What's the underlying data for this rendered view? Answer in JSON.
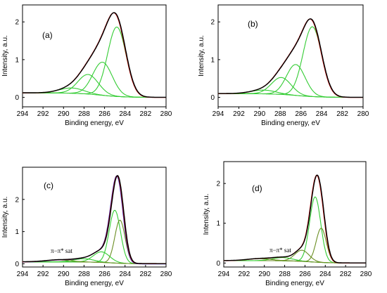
{
  "chart_data": [
    {
      "type": "line",
      "panel_label": "(a)",
      "xlabel": "Binding energy, eV",
      "ylabel": "Intensity, a.u.",
      "xlim": [
        294,
        280
      ],
      "ylim": [
        -0.25,
        2.45
      ],
      "x_ticks": [
        294,
        292,
        290,
        288,
        286,
        284,
        282,
        280
      ],
      "y_ticks": [
        0,
        1,
        2
      ],
      "annotation": "",
      "components": [
        {
          "center": 284.8,
          "amp": 1.84,
          "sigma": 0.9,
          "color": "#33cc33"
        },
        {
          "center": 286.2,
          "amp": 0.88,
          "sigma": 0.95,
          "color": "#33cc33"
        },
        {
          "center": 287.6,
          "amp": 0.52,
          "sigma": 1.0,
          "color": "#33cc33"
        },
        {
          "center": 289.2,
          "amp": 0.14,
          "sigma": 1.2,
          "color": "#33cc33"
        }
      ],
      "background": {
        "low": 0.0,
        "high": 0.12,
        "step_center": 286.5,
        "step_width": 1.2
      },
      "envelope_colors": [
        "#cc0000",
        "#000000"
      ]
    },
    {
      "type": "line",
      "panel_label": "(b)",
      "xlabel": "Binding energy, eV",
      "ylabel": "Intensity, a.u.",
      "xlim": [
        294,
        280
      ],
      "ylim": [
        -0.25,
        2.45
      ],
      "x_ticks": [
        294,
        292,
        290,
        288,
        286,
        284,
        282,
        280
      ],
      "y_ticks": [
        0,
        1,
        2
      ],
      "annotation": "",
      "components": [
        {
          "center": 284.9,
          "amp": 1.85,
          "sigma": 0.9,
          "color": "#33cc33"
        },
        {
          "center": 286.5,
          "amp": 0.82,
          "sigma": 0.9,
          "color": "#33cc33"
        },
        {
          "center": 287.9,
          "amp": 0.45,
          "sigma": 0.95,
          "color": "#33cc33"
        },
        {
          "center": 289.6,
          "amp": 0.1,
          "sigma": 1.2,
          "color": "#33cc33"
        }
      ],
      "background": {
        "low": 0.0,
        "high": 0.1,
        "step_center": 286.5,
        "step_width": 1.2
      },
      "envelope_colors": [
        "#cc0000",
        "#000000"
      ]
    },
    {
      "type": "line",
      "panel_label": "(c)",
      "xlabel": "Binding energy, eV",
      "ylabel": "Intensity, a.u.",
      "xlim": [
        294,
        280
      ],
      "ylim": [
        -0.1,
        3.0
      ],
      "x_ticks": [
        294,
        292,
        290,
        288,
        286,
        284,
        282,
        280
      ],
      "y_ticks": [
        0,
        1,
        2
      ],
      "annotation": "π−π* sat",
      "components": [
        {
          "center": 285.0,
          "amp": 1.64,
          "sigma": 0.55,
          "color": "#33cc33"
        },
        {
          "center": 284.5,
          "amp": 1.34,
          "sigma": 0.5,
          "color": "#6b8e23"
        },
        {
          "center": 286.3,
          "amp": 0.33,
          "sigma": 0.8,
          "color": "#33cc33"
        },
        {
          "center": 288.0,
          "amp": 0.1,
          "sigma": 1.0,
          "color": "#33cc33"
        },
        {
          "center": 290.5,
          "amp": 0.06,
          "sigma": 1.2,
          "color": "#6b8e23"
        }
      ],
      "background": {
        "low": 0.0,
        "high": 0.06,
        "step_center": 285.5,
        "step_width": 1.0
      },
      "envelope_colors": [
        "#3333cc",
        "#cc0000",
        "#000000"
      ]
    },
    {
      "type": "line",
      "panel_label": "(d)",
      "xlabel": "Binding energy, eV",
      "ylabel": "Intensity, a.u.",
      "xlim": [
        294,
        280
      ],
      "ylim": [
        -0.1,
        2.55
      ],
      "x_ticks": [
        294,
        292,
        290,
        288,
        286,
        284,
        282,
        280
      ],
      "y_ticks": [
        0,
        1,
        2
      ],
      "annotation": "π−π* sat",
      "components": [
        {
          "center": 285.0,
          "amp": 1.64,
          "sigma": 0.55,
          "color": "#33cc33"
        },
        {
          "center": 284.4,
          "amp": 0.86,
          "sigma": 0.5,
          "color": "#6b8e23"
        },
        {
          "center": 286.3,
          "amp": 0.28,
          "sigma": 0.7,
          "color": "#6b8e23"
        },
        {
          "center": 288.2,
          "amp": 0.08,
          "sigma": 1.0,
          "color": "#33cc33"
        },
        {
          "center": 290.5,
          "amp": 0.05,
          "sigma": 1.2,
          "color": "#6b8e23"
        }
      ],
      "background": {
        "low": 0.0,
        "high": 0.06,
        "step_center": 285.5,
        "step_width": 1.0
      },
      "envelope_colors": [
        "#cc0000",
        "#000000"
      ]
    }
  ]
}
